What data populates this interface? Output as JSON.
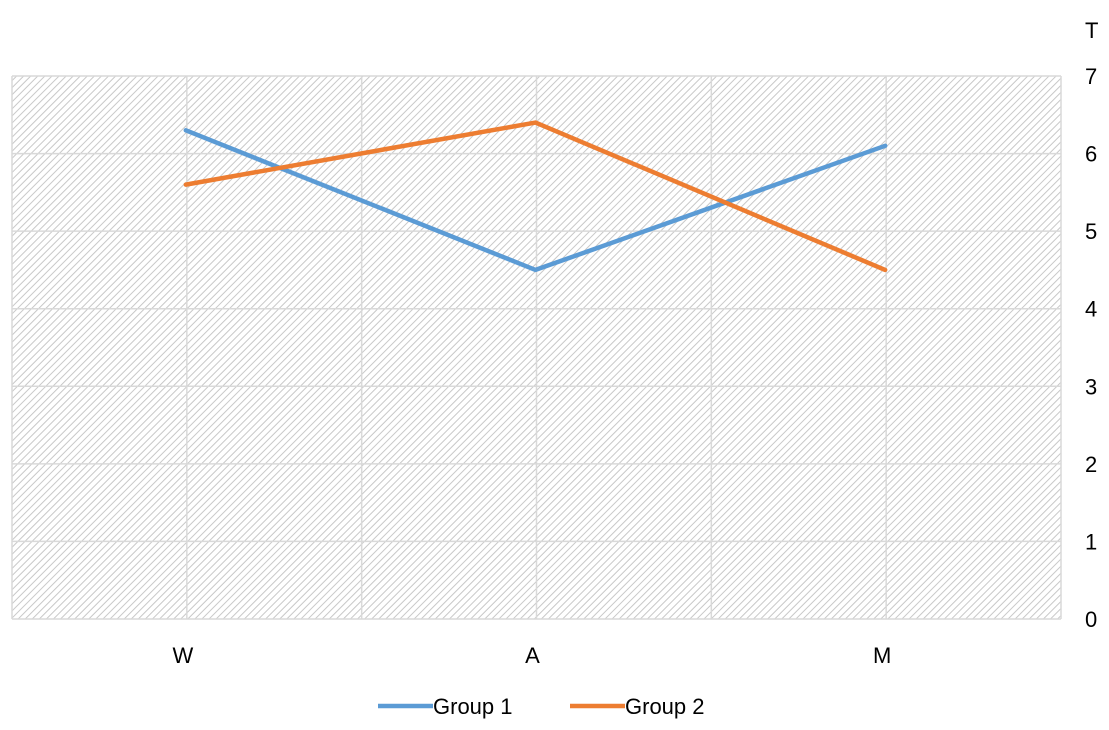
{
  "chart_data": {
    "type": "line",
    "categories": [
      "W",
      "A",
      "M"
    ],
    "series": [
      {
        "name": "Group 1",
        "values": [
          6.3,
          4.5,
          6.1
        ],
        "color": "#5b9bd5"
      },
      {
        "name": "Group 2",
        "values": [
          5.6,
          6.4,
          4.5
        ],
        "color": "#ed7d31"
      }
    ],
    "ylim": [
      0,
      7
    ],
    "yticks": [
      0,
      1,
      2,
      3,
      4,
      5,
      6,
      7
    ],
    "y_axis_side": "right",
    "y_axis_title": "T",
    "grid": true,
    "plot_background": "hatched-gray",
    "legend_position": "bottom"
  }
}
